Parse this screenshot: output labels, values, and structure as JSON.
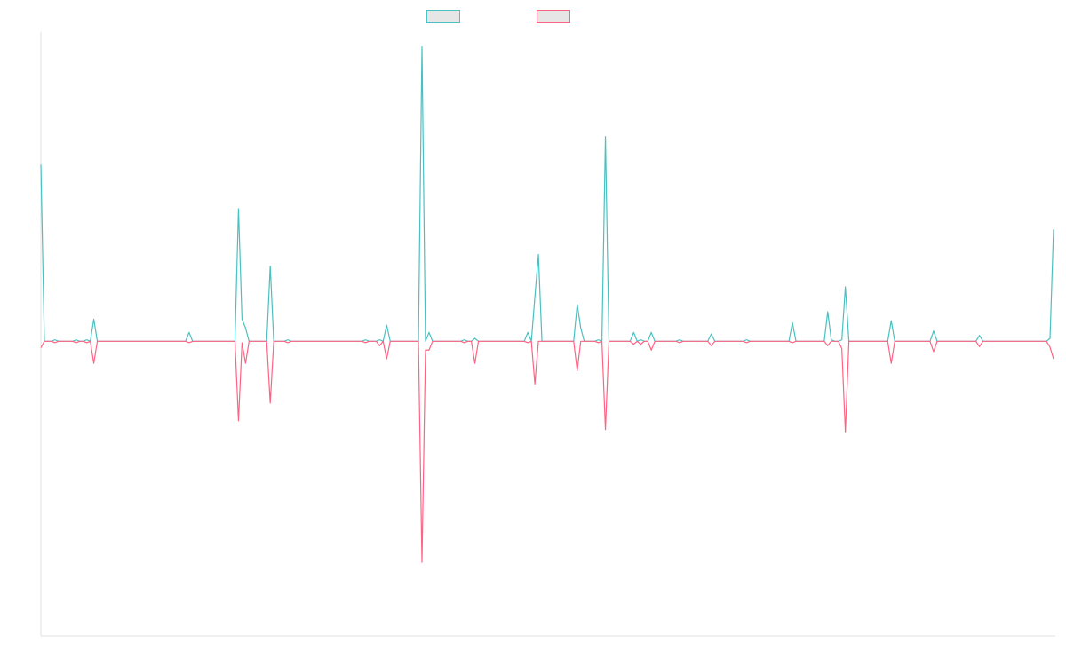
{
  "chart_data": {
    "type": "line",
    "title": "",
    "xlabel": "",
    "ylabel": "",
    "legend_position": "top-center",
    "grid": false,
    "ylim": [
      -1,
      1.05
    ],
    "x_count": 288,
    "series": [
      {
        "color": "#4bc0c0",
        "baseline": 0,
        "peaks": [
          [
            0,
            0.6
          ],
          [
            1,
            0.0
          ],
          [
            4,
            0.005
          ],
          [
            10,
            0.005
          ],
          [
            13,
            0.005
          ],
          [
            15,
            0.075
          ],
          [
            42,
            0.03
          ],
          [
            56,
            0.45
          ],
          [
            57,
            0.075
          ],
          [
            58,
            0.045
          ],
          [
            65,
            0.255
          ],
          [
            70,
            0.005
          ],
          [
            92,
            0.005
          ],
          [
            96,
            0.005
          ],
          [
            98,
            0.055
          ],
          [
            108,
            1.0
          ],
          [
            110,
            0.03
          ],
          [
            120,
            0.005
          ],
          [
            123,
            0.01
          ],
          [
            138,
            0.03
          ],
          [
            140,
            0.15
          ],
          [
            141,
            0.295
          ],
          [
            152,
            0.125
          ],
          [
            153,
            0.045
          ],
          [
            158,
            0.005
          ],
          [
            160,
            0.695
          ],
          [
            168,
            0.03
          ],
          [
            170,
            0.005
          ],
          [
            173,
            0.03
          ],
          [
            181,
            0.005
          ],
          [
            190,
            0.025
          ],
          [
            200,
            0.005
          ],
          [
            213,
            0.063
          ],
          [
            223,
            0.1
          ],
          [
            224,
            0.005
          ],
          [
            227,
            0.005
          ],
          [
            228,
            0.185
          ],
          [
            241,
            0.07
          ],
          [
            253,
            0.035
          ],
          [
            266,
            0.02
          ],
          [
            286,
            0.01
          ],
          [
            287,
            0.38
          ]
        ]
      },
      {
        "color": "#ff6384",
        "baseline": 0,
        "peaks": [
          [
            0,
            -0.022
          ],
          [
            4,
            -0.005
          ],
          [
            10,
            -0.005
          ],
          [
            13,
            -0.005
          ],
          [
            15,
            -0.075
          ],
          [
            42,
            -0.005
          ],
          [
            56,
            -0.27
          ],
          [
            57,
            -0.005
          ],
          [
            58,
            -0.075
          ],
          [
            65,
            -0.21
          ],
          [
            70,
            -0.005
          ],
          [
            92,
            -0.005
          ],
          [
            96,
            -0.015
          ],
          [
            98,
            -0.06
          ],
          [
            108,
            -0.75
          ],
          [
            109,
            -0.03
          ],
          [
            110,
            -0.03
          ],
          [
            120,
            -0.005
          ],
          [
            123,
            -0.075
          ],
          [
            138,
            -0.005
          ],
          [
            140,
            -0.145
          ],
          [
            152,
            -0.1
          ],
          [
            158,
            -0.005
          ],
          [
            160,
            -0.3
          ],
          [
            168,
            -0.01
          ],
          [
            170,
            -0.01
          ],
          [
            173,
            -0.03
          ],
          [
            181,
            -0.005
          ],
          [
            190,
            -0.015
          ],
          [
            200,
            -0.005
          ],
          [
            213,
            -0.005
          ],
          [
            223,
            -0.015
          ],
          [
            227,
            -0.025
          ],
          [
            228,
            -0.31
          ],
          [
            241,
            -0.075
          ],
          [
            253,
            -0.035
          ],
          [
            266,
            -0.018
          ],
          [
            286,
            -0.02
          ],
          [
            287,
            -0.06
          ]
        ]
      }
    ]
  }
}
